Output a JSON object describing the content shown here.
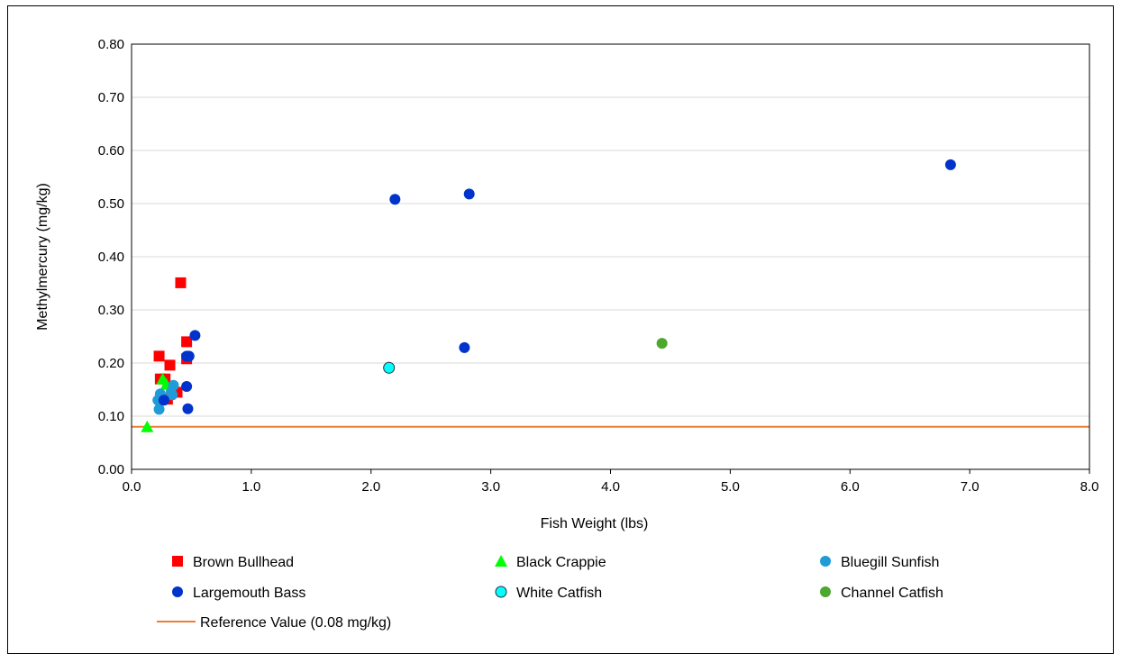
{
  "chart_data": {
    "type": "scatter",
    "xlabel": "Fish Weight (lbs)",
    "ylabel": "Methylmercury (mg/kg)",
    "xlim": [
      0,
      8
    ],
    "ylim": [
      0,
      0.8
    ],
    "x_ticks": [
      "0.0",
      "1.0",
      "2.0",
      "3.0",
      "4.0",
      "5.0",
      "6.0",
      "7.0",
      "8.0"
    ],
    "y_ticks": [
      "0.00",
      "0.10",
      "0.20",
      "0.30",
      "0.40",
      "0.50",
      "0.60",
      "0.70",
      "0.80"
    ],
    "grid": "horizontal",
    "legend_position": "bottom",
    "reference_line": {
      "name": "Reference Value (0.08 mg/kg)",
      "y": 0.08,
      "color": "#ed7d31"
    },
    "series": [
      {
        "name": "Brown Bullhead",
        "marker": "square",
        "color": "#ff0000",
        "points": [
          [
            0.41,
            0.351
          ],
          [
            0.46,
            0.24
          ],
          [
            0.23,
            0.213
          ],
          [
            0.32,
            0.196
          ],
          [
            0.46,
            0.208
          ],
          [
            0.24,
            0.17
          ],
          [
            0.28,
            0.17
          ],
          [
            0.38,
            0.145
          ],
          [
            0.3,
            0.132
          ]
        ]
      },
      {
        "name": "Black Crappie",
        "marker": "triangle",
        "color": "#00ff00",
        "points": [
          [
            0.13,
            0.08
          ],
          [
            0.26,
            0.17
          ],
          [
            0.29,
            0.16
          ]
        ]
      },
      {
        "name": "Bluegill Sunfish",
        "marker": "circle",
        "color": "#1f9bd7",
        "points": [
          [
            0.22,
            0.13
          ],
          [
            0.23,
            0.113
          ],
          [
            0.24,
            0.142
          ],
          [
            0.33,
            0.145
          ],
          [
            0.35,
            0.158
          ],
          [
            0.34,
            0.14
          ]
        ]
      },
      {
        "name": "Largemouth Bass",
        "marker": "circle",
        "color": "#0033cc",
        "points": [
          [
            6.84,
            0.573
          ],
          [
            2.82,
            0.518
          ],
          [
            2.2,
            0.508
          ],
          [
            0.53,
            0.252
          ],
          [
            2.78,
            0.229
          ],
          [
            0.46,
            0.213
          ],
          [
            0.48,
            0.213
          ],
          [
            0.46,
            0.156
          ],
          [
            0.27,
            0.13
          ],
          [
            0.47,
            0.114
          ]
        ]
      },
      {
        "name": "White Catfish",
        "marker": "circle-outline",
        "color": "#00ffff",
        "points": [
          [
            2.15,
            0.191
          ]
        ]
      },
      {
        "name": "Channel Catfish",
        "marker": "circle",
        "color": "#4ea72e",
        "points": [
          [
            4.43,
            0.237
          ]
        ]
      }
    ]
  }
}
